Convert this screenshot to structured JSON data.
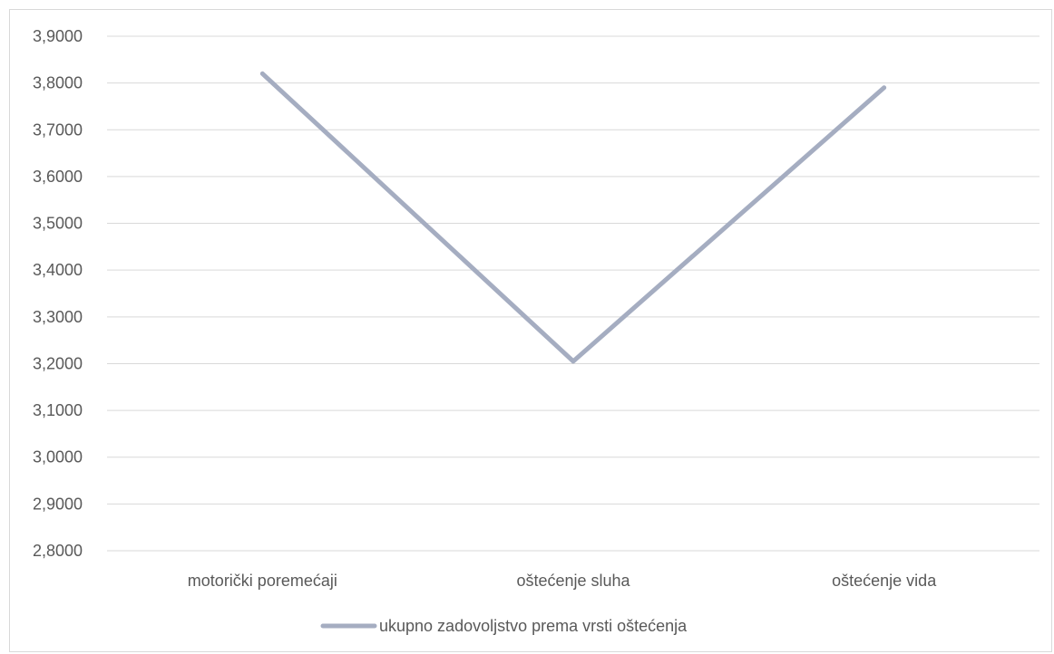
{
  "chart_data": {
    "type": "line",
    "title": "",
    "xlabel": "",
    "ylabel": "",
    "categories": [
      "motorički poremećaji",
      "oštećenje sluha",
      "oštećenje vida"
    ],
    "series": [
      {
        "name": "ukupno zadovoljstvo prema vrsti oštećenja",
        "values": [
          3.82,
          3.205,
          3.79
        ]
      }
    ],
    "ylim": [
      2.8,
      3.9
    ],
    "y_ticks": [
      "2,8000",
      "2,9000",
      "3,0000",
      "3,1000",
      "3,2000",
      "3,3000",
      "3,4000",
      "3,5000",
      "3,6000",
      "3,7000",
      "3,8000",
      "3,9000"
    ],
    "grid": true,
    "legend_position": "bottom",
    "colors": {
      "series": "#a5adc1",
      "grid": "#d9d9d9",
      "text": "#595959",
      "border": "#d9d9d9"
    }
  }
}
